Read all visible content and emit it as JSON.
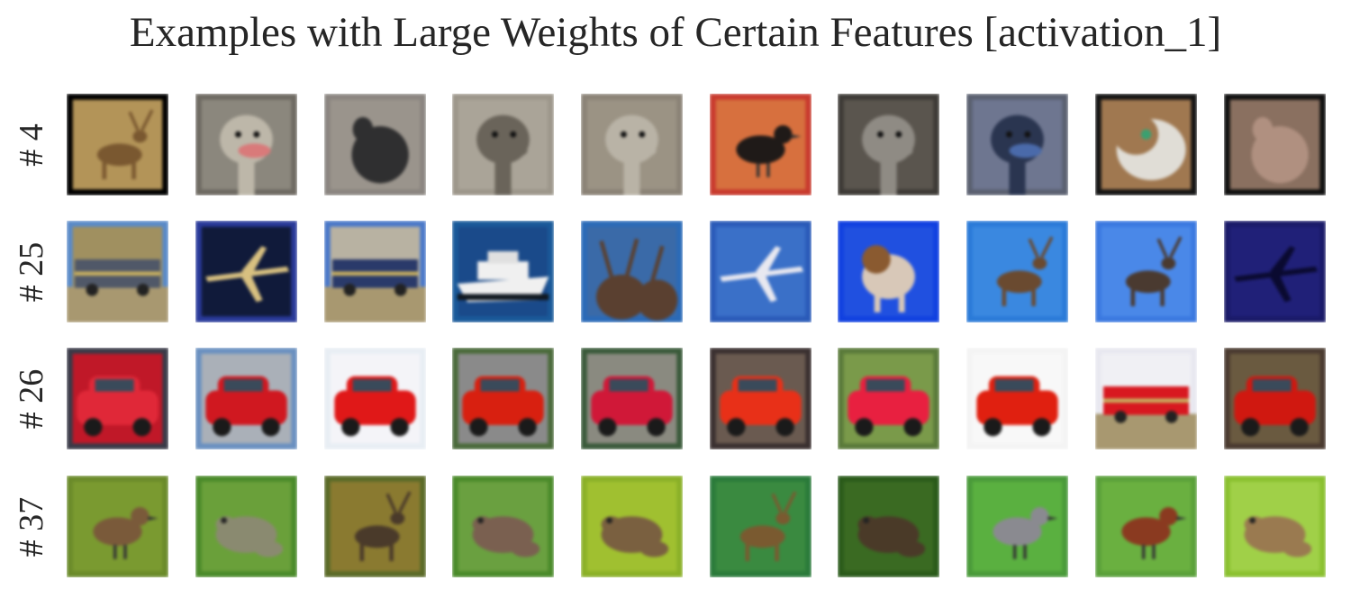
{
  "title": "Examples with Large Weights of Certain Features [activation_1]",
  "rows": [
    {
      "label": "# 4",
      "images": [
        "deer-framed",
        "ostrich-head",
        "gray-bird",
        "ostrich-head",
        "ostrich-head",
        "bird-on-red-cover",
        "ostrich-head",
        "emu-head",
        "cat-face",
        "fur-closeup"
      ]
    },
    {
      "label": "# 25",
      "images": [
        "truck",
        "airplane-night",
        "truck",
        "cruise-ship",
        "deer-antlers",
        "airplane",
        "dog",
        "deer",
        "deer",
        "airplane-dark"
      ]
    },
    {
      "label": "# 26",
      "images": [
        "red-car-rear",
        "red-car",
        "red-car",
        "red-car",
        "red-car",
        "red-car",
        "red-car",
        "red-car-front",
        "red-truck",
        "red-car"
      ]
    },
    {
      "label": "# 37",
      "images": [
        "bird-on-post",
        "frog",
        "deer",
        "frog",
        "frog",
        "deer",
        "frog",
        "bird",
        "rooster",
        "frog"
      ]
    }
  ],
  "colors": {
    "text": "#262626",
    "row_backgrounds": [
      "#1a1a1a",
      "#3a6ad8",
      "#b01a1a",
      "#6f9a2a"
    ]
  }
}
